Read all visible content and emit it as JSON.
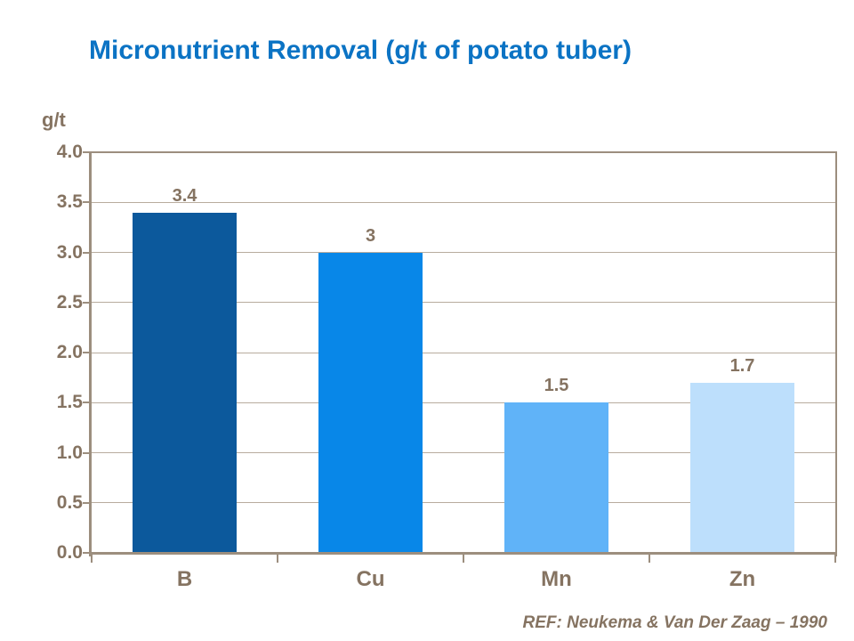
{
  "page": {
    "title": "Micronutrient Removal (g/t of potato tuber)",
    "reference": "REF: Neukema & Van Der Zaag – 1990"
  },
  "colors": {
    "title_blue": "#0B73C4",
    "text_brown": "#857361",
    "axis_frame": "#9C8E7E",
    "gridline": "#B8AC9E",
    "bar_colors": [
      "#0C599C",
      "#0887E8",
      "#60B3F8",
      "#BDDFFC"
    ]
  },
  "chart_data": {
    "type": "bar",
    "title": "Micronutrient Removal (g/t of potato tuber)",
    "xlabel": "",
    "ylabel": "g/t",
    "categories": [
      "B",
      "Cu",
      "Mn",
      "Zn"
    ],
    "values": [
      3.4,
      3,
      1.5,
      1.7
    ],
    "value_labels": [
      "3.4",
      "3",
      "1.5",
      "1.7"
    ],
    "ylim": [
      0,
      4
    ],
    "ytick_step": 0.5,
    "ytick_labels": [
      "0.0",
      "0.5",
      "1.0",
      "1.5",
      "2.0",
      "2.5",
      "3.0",
      "3.5",
      "4.0"
    ],
    "grid": true,
    "legend": false,
    "annotation": "REF: Neukema & Van Der Zaag – 1990"
  }
}
